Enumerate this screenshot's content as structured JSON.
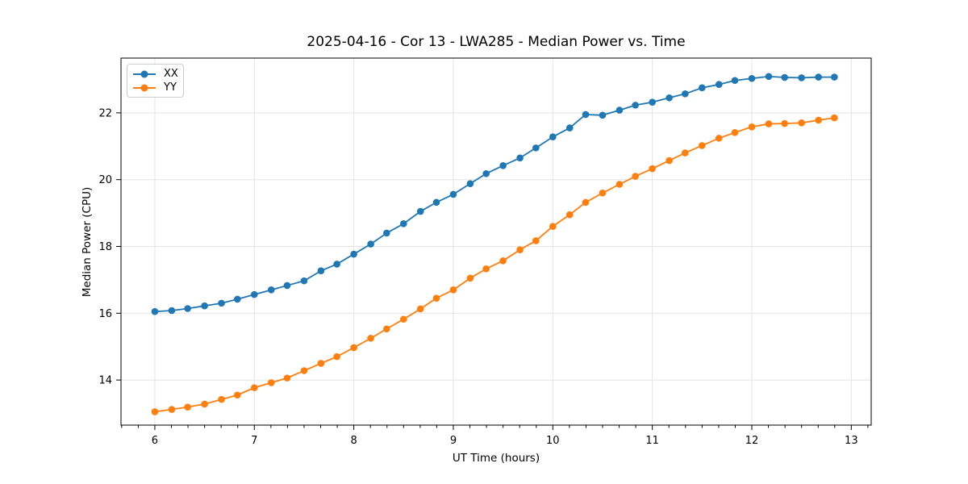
{
  "window": {
    "title": "2025-04-16 - Cor 13 - LWA285 - Median Power vs. Time"
  },
  "legend": {
    "items": [
      {
        "label": "XX",
        "color": "#1f77b4"
      },
      {
        "label": "YY",
        "color": "#ff7f0e"
      }
    ]
  },
  "chart_data": {
    "type": "line",
    "title": "2025-04-16 - Cor 13 - LWA285 - Median Power vs. Time",
    "xlabel": "UT Time (hours)",
    "ylabel": "Median Power (CPU)",
    "xlim": [
      5.66,
      13.2
    ],
    "ylim": [
      12.65,
      23.64
    ],
    "x_ticks": [
      6,
      7,
      8,
      9,
      10,
      11,
      12,
      13
    ],
    "y_ticks": [
      14,
      16,
      18,
      20,
      22
    ],
    "x_minor_step": 0.16667,
    "grid": true,
    "grid_color": "#e4e4e4",
    "legend_position": "upper-left",
    "marker": "circle",
    "x": [
      6.0,
      6.17,
      6.33,
      6.5,
      6.67,
      6.83,
      7.0,
      7.17,
      7.33,
      7.5,
      7.67,
      7.83,
      8.0,
      8.17,
      8.33,
      8.5,
      8.67,
      8.83,
      9.0,
      9.17,
      9.33,
      9.5,
      9.67,
      9.83,
      10.0,
      10.17,
      10.33,
      10.5,
      10.67,
      10.83,
      11.0,
      11.17,
      11.33,
      11.5,
      11.67,
      11.83,
      12.0,
      12.17,
      12.33,
      12.5,
      12.67,
      12.83
    ],
    "series": [
      {
        "name": "XX",
        "color": "#1f77b4",
        "values": [
          16.05,
          16.08,
          16.14,
          16.22,
          16.3,
          16.42,
          16.56,
          16.7,
          16.83,
          16.97,
          17.27,
          17.47,
          17.77,
          18.07,
          18.4,
          18.68,
          19.05,
          19.32,
          19.56,
          19.88,
          20.18,
          20.42,
          20.65,
          20.95,
          21.28,
          21.55,
          21.95,
          21.93,
          22.08,
          22.23,
          22.32,
          22.45,
          22.57,
          22.75,
          22.85,
          22.97,
          23.03,
          23.09,
          23.06,
          23.05,
          23.07,
          23.07
        ]
      },
      {
        "name": "YY",
        "color": "#ff7f0e",
        "values": [
          13.05,
          13.12,
          13.19,
          13.28,
          13.42,
          13.55,
          13.77,
          13.92,
          14.06,
          14.28,
          14.5,
          14.7,
          14.97,
          15.25,
          15.53,
          15.82,
          16.13,
          16.45,
          16.7,
          17.05,
          17.33,
          17.57,
          17.9,
          18.17,
          18.6,
          18.95,
          19.32,
          19.6,
          19.86,
          20.1,
          20.33,
          20.57,
          20.8,
          21.02,
          21.24,
          21.41,
          21.58,
          21.67,
          21.68,
          21.7,
          21.78,
          21.85
        ]
      }
    ]
  }
}
